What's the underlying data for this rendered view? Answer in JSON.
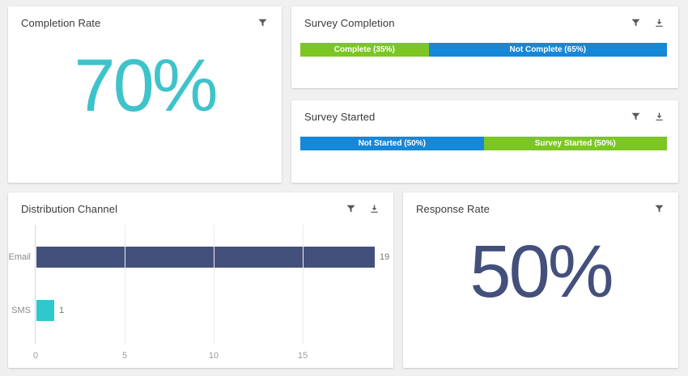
{
  "dashboard": {
    "background": "#f0f0f1"
  },
  "cards": {
    "completion_rate": {
      "title": "Completion Rate",
      "value": "70%",
      "value_color": "#3fc3cb"
    },
    "survey_completion": {
      "title": "Survey Completion"
    },
    "survey_started": {
      "title": "Survey Started"
    },
    "distribution_channel": {
      "title": "Distribution Channel"
    },
    "response_rate": {
      "title": "Response Rate",
      "value": "50%",
      "value_color": "#44507c"
    }
  },
  "chart_data": [
    {
      "id": "survey-completion",
      "type": "bar",
      "variant": "stacked-horizontal-100pct",
      "segments": [
        {
          "label": "Complete (35%)",
          "value": 35,
          "color": "#7cc623"
        },
        {
          "label": "Not Complete (65%)",
          "value": 65,
          "color": "#1787d8"
        }
      ]
    },
    {
      "id": "survey-started",
      "type": "bar",
      "variant": "stacked-horizontal-100pct",
      "segments": [
        {
          "label": "Not Started (50%)",
          "value": 50,
          "color": "#1787d8"
        },
        {
          "label": "Survey Started (50%)",
          "value": 50,
          "color": "#7cc623"
        }
      ]
    },
    {
      "id": "distribution-channel",
      "type": "bar",
      "orientation": "horizontal",
      "categories": [
        "Email",
        "SMS"
      ],
      "values": [
        19,
        1
      ],
      "value_labels": [
        "19",
        "1"
      ],
      "bar_colors": [
        "#44507c",
        "#2fc8cd"
      ],
      "xticks": [
        0,
        5,
        10,
        15
      ],
      "xlim": [
        0,
        20
      ],
      "grid": true,
      "legend": "none",
      "title": "Distribution Channel"
    }
  ]
}
